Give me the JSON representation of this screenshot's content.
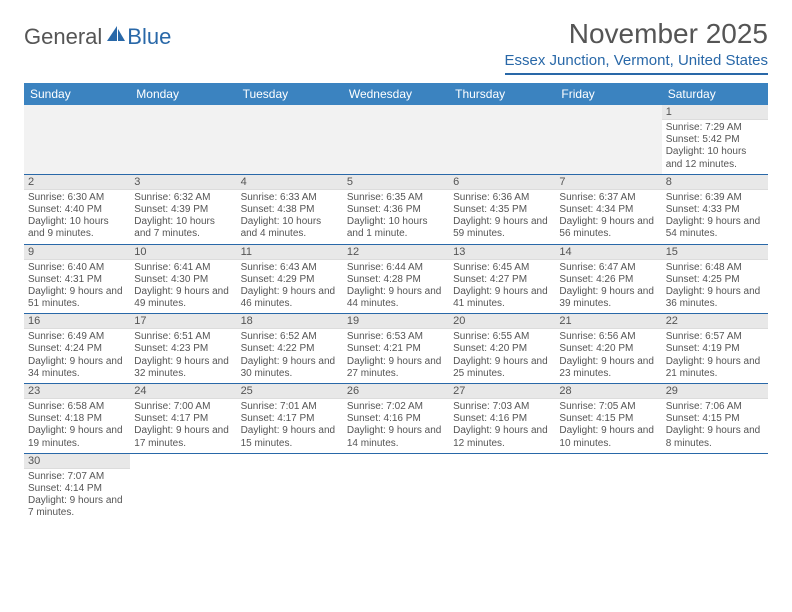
{
  "brand": {
    "part1": "General",
    "part2": "Blue",
    "color1": "#555555",
    "color2": "#2968a8"
  },
  "title": "November 2025",
  "location": "Essex Junction, Vermont, United States",
  "header_bg": "#3b83c0",
  "accent": "#2968a8",
  "day_headers": [
    "Sunday",
    "Monday",
    "Tuesday",
    "Wednesday",
    "Thursday",
    "Friday",
    "Saturday"
  ],
  "weeks": [
    [
      null,
      null,
      null,
      null,
      null,
      null,
      {
        "n": "1",
        "sr": "7:29 AM",
        "ss": "5:42 PM",
        "dl": "10 hours and 12 minutes."
      }
    ],
    [
      {
        "n": "2",
        "sr": "6:30 AM",
        "ss": "4:40 PM",
        "dl": "10 hours and 9 minutes."
      },
      {
        "n": "3",
        "sr": "6:32 AM",
        "ss": "4:39 PM",
        "dl": "10 hours and 7 minutes."
      },
      {
        "n": "4",
        "sr": "6:33 AM",
        "ss": "4:38 PM",
        "dl": "10 hours and 4 minutes."
      },
      {
        "n": "5",
        "sr": "6:35 AM",
        "ss": "4:36 PM",
        "dl": "10 hours and 1 minute."
      },
      {
        "n": "6",
        "sr": "6:36 AM",
        "ss": "4:35 PM",
        "dl": "9 hours and 59 minutes."
      },
      {
        "n": "7",
        "sr": "6:37 AM",
        "ss": "4:34 PM",
        "dl": "9 hours and 56 minutes."
      },
      {
        "n": "8",
        "sr": "6:39 AM",
        "ss": "4:33 PM",
        "dl": "9 hours and 54 minutes."
      }
    ],
    [
      {
        "n": "9",
        "sr": "6:40 AM",
        "ss": "4:31 PM",
        "dl": "9 hours and 51 minutes."
      },
      {
        "n": "10",
        "sr": "6:41 AM",
        "ss": "4:30 PM",
        "dl": "9 hours and 49 minutes."
      },
      {
        "n": "11",
        "sr": "6:43 AM",
        "ss": "4:29 PM",
        "dl": "9 hours and 46 minutes."
      },
      {
        "n": "12",
        "sr": "6:44 AM",
        "ss": "4:28 PM",
        "dl": "9 hours and 44 minutes."
      },
      {
        "n": "13",
        "sr": "6:45 AM",
        "ss": "4:27 PM",
        "dl": "9 hours and 41 minutes."
      },
      {
        "n": "14",
        "sr": "6:47 AM",
        "ss": "4:26 PM",
        "dl": "9 hours and 39 minutes."
      },
      {
        "n": "15",
        "sr": "6:48 AM",
        "ss": "4:25 PM",
        "dl": "9 hours and 36 minutes."
      }
    ],
    [
      {
        "n": "16",
        "sr": "6:49 AM",
        "ss": "4:24 PM",
        "dl": "9 hours and 34 minutes."
      },
      {
        "n": "17",
        "sr": "6:51 AM",
        "ss": "4:23 PM",
        "dl": "9 hours and 32 minutes."
      },
      {
        "n": "18",
        "sr": "6:52 AM",
        "ss": "4:22 PM",
        "dl": "9 hours and 30 minutes."
      },
      {
        "n": "19",
        "sr": "6:53 AM",
        "ss": "4:21 PM",
        "dl": "9 hours and 27 minutes."
      },
      {
        "n": "20",
        "sr": "6:55 AM",
        "ss": "4:20 PM",
        "dl": "9 hours and 25 minutes."
      },
      {
        "n": "21",
        "sr": "6:56 AM",
        "ss": "4:20 PM",
        "dl": "9 hours and 23 minutes."
      },
      {
        "n": "22",
        "sr": "6:57 AM",
        "ss": "4:19 PM",
        "dl": "9 hours and 21 minutes."
      }
    ],
    [
      {
        "n": "23",
        "sr": "6:58 AM",
        "ss": "4:18 PM",
        "dl": "9 hours and 19 minutes."
      },
      {
        "n": "24",
        "sr": "7:00 AM",
        "ss": "4:17 PM",
        "dl": "9 hours and 17 minutes."
      },
      {
        "n": "25",
        "sr": "7:01 AM",
        "ss": "4:17 PM",
        "dl": "9 hours and 15 minutes."
      },
      {
        "n": "26",
        "sr": "7:02 AM",
        "ss": "4:16 PM",
        "dl": "9 hours and 14 minutes."
      },
      {
        "n": "27",
        "sr": "7:03 AM",
        "ss": "4:16 PM",
        "dl": "9 hours and 12 minutes."
      },
      {
        "n": "28",
        "sr": "7:05 AM",
        "ss": "4:15 PM",
        "dl": "9 hours and 10 minutes."
      },
      {
        "n": "29",
        "sr": "7:06 AM",
        "ss": "4:15 PM",
        "dl": "9 hours and 8 minutes."
      }
    ],
    [
      {
        "n": "30",
        "sr": "7:07 AM",
        "ss": "4:14 PM",
        "dl": "9 hours and 7 minutes."
      },
      null,
      null,
      null,
      null,
      null,
      null
    ]
  ],
  "labels": {
    "sunrise": "Sunrise:",
    "sunset": "Sunset:",
    "daylight": "Daylight:"
  }
}
